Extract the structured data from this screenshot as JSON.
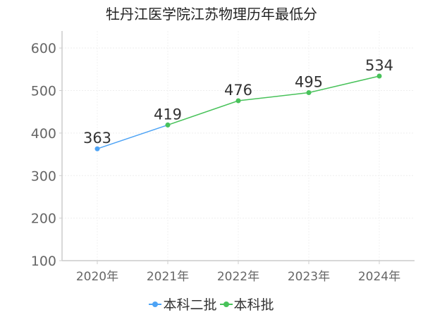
{
  "chart_data": {
    "type": "line",
    "title": "牡丹江医学院江苏物理历年最低分",
    "categories": [
      "2020年",
      "2021年",
      "2022年",
      "2023年",
      "2024年"
    ],
    "series": [
      {
        "name": "本科二批",
        "color": "#4da3f5",
        "values": [
          363,
          419,
          null,
          null,
          null
        ]
      },
      {
        "name": "本科批",
        "color": "#48c25a",
        "values": [
          null,
          419,
          476,
          495,
          534
        ]
      }
    ],
    "data_labels": [
      363,
      419,
      476,
      495,
      534
    ],
    "ylim": [
      100,
      640
    ],
    "yticks": [
      100,
      200,
      300,
      400,
      500,
      600
    ],
    "grid": true,
    "legend_position": "bottom"
  }
}
